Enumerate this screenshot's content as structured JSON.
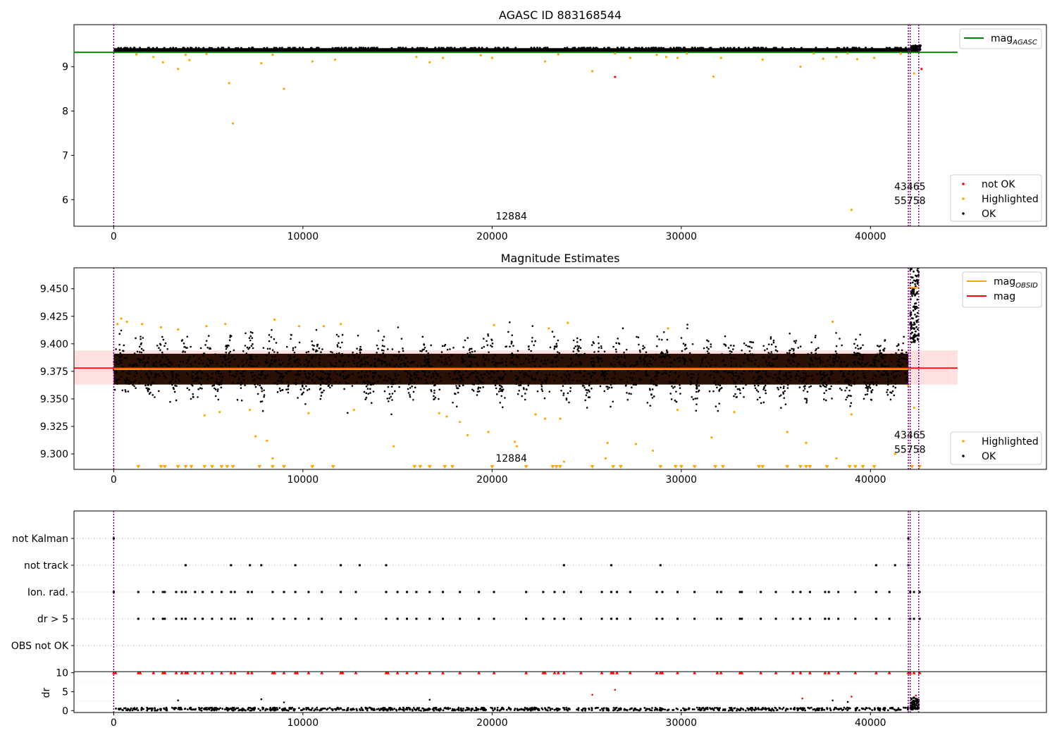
{
  "chart_data": [
    {
      "type": "scatter",
      "title": "AGASC ID 883168544",
      "xlim": [
        -2100,
        49300
      ],
      "ylim": [
        5.4,
        9.95
      ],
      "x_ticks": [
        "0",
        "10000",
        "20000",
        "30000",
        "40000"
      ],
      "y_ticks": [
        "6",
        "7",
        "8",
        "9"
      ],
      "legends": [
        {
          "location": "top-right",
          "entries": [
            {
              "label": "mag",
              "sub": "AGASC",
              "color": "#008000",
              "kind": "line"
            }
          ]
        },
        {
          "location": "bottom-right",
          "entries": [
            {
              "label": "not OK",
              "color": "#ff0000",
              "kind": "marker"
            },
            {
              "label": "Highlighted",
              "color": "#ffa500",
              "kind": "marker"
            },
            {
              "label": "OK",
              "color": "#000000",
              "kind": "marker"
            }
          ]
        }
      ],
      "annotations": [
        {
          "text": "12884",
          "x": 20000,
          "y": 5.55
        },
        {
          "text": "43465",
          "x": 42000,
          "y": 6.22
        },
        {
          "text": "55758",
          "x": 42000,
          "y": 5.9
        }
      ],
      "vlines": [
        0,
        42000,
        42100,
        42550
      ],
      "mag_agasc": 9.325,
      "mag_agasc_xrange": [
        0,
        44600
      ],
      "ok_band": {
        "x": [
          0,
          42600
        ],
        "y_low": 9.33,
        "y_high": 9.42
      },
      "highlighted_points": [
        [
          1200,
          9.28
        ],
        [
          2100,
          9.22
        ],
        [
          2600,
          9.1
        ],
        [
          3400,
          8.95
        ],
        [
          3800,
          9.27
        ],
        [
          4000,
          9.15
        ],
        [
          4900,
          9.29
        ],
        [
          6100,
          8.63
        ],
        [
          6300,
          7.72
        ],
        [
          7800,
          9.08
        ],
        [
          8400,
          9.27
        ],
        [
          9000,
          8.5
        ],
        [
          10500,
          9.12
        ],
        [
          11700,
          9.16
        ],
        [
          16000,
          9.22
        ],
        [
          16700,
          9.1
        ],
        [
          17400,
          9.2
        ],
        [
          19400,
          9.26
        ],
        [
          20000,
          9.2
        ],
        [
          22800,
          9.12
        ],
        [
          23500,
          9.28
        ],
        [
          25300,
          8.9
        ],
        [
          26500,
          9.3
        ],
        [
          27300,
          9.2
        ],
        [
          28700,
          9.27
        ],
        [
          29200,
          9.22
        ],
        [
          29800,
          9.2
        ],
        [
          30300,
          9.3
        ],
        [
          31700,
          8.78
        ],
        [
          32100,
          9.2
        ],
        [
          34300,
          9.16
        ],
        [
          36300,
          9.0
        ],
        [
          37000,
          9.3
        ],
        [
          37500,
          9.18
        ],
        [
          38200,
          9.22
        ],
        [
          38800,
          9.3
        ],
        [
          39000,
          5.77
        ],
        [
          39300,
          9.17
        ],
        [
          40200,
          9.2
        ],
        [
          41600,
          9.3
        ],
        [
          42300,
          8.85
        ]
      ],
      "not_ok_points": [
        [
          26500,
          8.77
        ],
        [
          42700,
          8.95
        ]
      ]
    },
    {
      "type": "scatter",
      "title": "Magnitude Estimates",
      "xlim": [
        -2100,
        49300
      ],
      "ylim": [
        9.286,
        9.469
      ],
      "x_ticks": [
        "0",
        "10000",
        "20000",
        "30000",
        "40000"
      ],
      "y_ticks": [
        "9.300",
        "9.325",
        "9.350",
        "9.375",
        "9.400",
        "9.425",
        "9.450"
      ],
      "legends": [
        {
          "location": "top-right",
          "entries": [
            {
              "label": "mag",
              "sub": "OBSID",
              "color": "#ffa500",
              "kind": "line"
            },
            {
              "label": "mag",
              "sub": "",
              "color": "#ff0000",
              "kind": "line"
            }
          ]
        },
        {
          "location": "bottom-right",
          "entries": [
            {
              "label": "Highlighted",
              "color": "#ffa500",
              "kind": "marker"
            },
            {
              "label": "OK",
              "color": "#000000",
              "kind": "marker"
            }
          ]
        }
      ],
      "annotations": [
        {
          "text": "12884",
          "x": 20000,
          "y": 9.293
        },
        {
          "text": "43465",
          "x": 42000,
          "y": 9.314
        },
        {
          "text": "55758",
          "x": 42000,
          "y": 9.301
        }
      ],
      "vlines": [
        0,
        42000,
        42100,
        42550
      ],
      "mag": 9.378,
      "mag_band": [
        9.363,
        9.394
      ],
      "mag_xrange": [
        0,
        44600
      ],
      "mag_obsid_segments": [
        {
          "x": [
            0,
            42000
          ],
          "y": 9.377
        },
        {
          "x": [
            42000,
            42550
          ],
          "y": 9.451
        }
      ],
      "ok_cloud": {
        "x": [
          0,
          42000
        ],
        "center": 9.377,
        "spread": 0.036,
        "wave_period": 1150
      },
      "late_cluster": {
        "x": [
          42100,
          42550
        ],
        "y_low": 9.4,
        "y_high": 9.469
      },
      "highlighted_points": [
        [
          200,
          9.418
        ],
        [
          400,
          9.423
        ],
        [
          700,
          9.42
        ],
        [
          1500,
          9.418
        ],
        [
          2500,
          9.415
        ],
        [
          3400,
          9.413
        ],
        [
          4800,
          9.335
        ],
        [
          4900,
          9.416
        ],
        [
          5600,
          9.338
        ],
        [
          5900,
          9.418
        ],
        [
          7200,
          9.34
        ],
        [
          7500,
          9.316
        ],
        [
          8100,
          9.312
        ],
        [
          8400,
          9.296
        ],
        [
          8500,
          9.422
        ],
        [
          9800,
          9.416
        ],
        [
          10300,
          9.337
        ],
        [
          11100,
          9.416
        ],
        [
          12000,
          9.418
        ],
        [
          12700,
          9.34
        ],
        [
          14800,
          9.307
        ],
        [
          17200,
          9.337
        ],
        [
          17600,
          9.334
        ],
        [
          18300,
          9.329
        ],
        [
          18700,
          9.317
        ],
        [
          19800,
          9.32
        ],
        [
          20100,
          9.417
        ],
        [
          21200,
          9.311
        ],
        [
          21300,
          9.307
        ],
        [
          22300,
          9.336
        ],
        [
          22800,
          9.332
        ],
        [
          23000,
          9.414
        ],
        [
          23600,
          9.332
        ],
        [
          23800,
          9.293
        ],
        [
          24000,
          9.419
        ],
        [
          26000,
          9.296
        ],
        [
          26100,
          9.31
        ],
        [
          27600,
          9.309
        ],
        [
          28500,
          9.303
        ],
        [
          29300,
          9.414
        ],
        [
          29800,
          9.34
        ],
        [
          31600,
          9.315
        ],
        [
          32800,
          9.338
        ],
        [
          35600,
          9.32
        ],
        [
          36600,
          9.31
        ],
        [
          38000,
          9.42
        ],
        [
          38200,
          9.296
        ],
        [
          39000,
          9.336
        ],
        [
          41300,
          9.3
        ],
        [
          42000,
          9.362
        ],
        [
          42300,
          9.342
        ]
      ],
      "lower_limit_x": [
        1300,
        2500,
        2700,
        3400,
        3800,
        4100,
        4800,
        5200,
        5700,
        6000,
        6300,
        7700,
        8400,
        9000,
        10500,
        11600,
        15900,
        16200,
        16700,
        17500,
        17900,
        20000,
        21800,
        23200,
        23400,
        23600,
        25300,
        26400,
        26800,
        28900,
        29700,
        30000,
        30700,
        31800,
        32200,
        34100,
        34300,
        35600,
        36300,
        36600,
        36800,
        37700,
        38900,
        39200,
        39600,
        40200,
        42200,
        42600
      ],
      "lower_limit_y": 9.288
    },
    {
      "type": "scatter",
      "title": "",
      "xlim": [
        -2100,
        49300
      ],
      "ylabel": "",
      "categories": [
        "not Kalman",
        "not track",
        "Ion. rad.",
        "dr > 5",
        "OBS not OK"
      ],
      "vlines": [
        0,
        42000,
        42100,
        42550
      ],
      "flags": {
        "not Kalman": [
          0,
          42000
        ],
        "not track": [
          3800,
          6200,
          7200,
          7800,
          9600,
          12000,
          13000,
          14400,
          23800,
          26300,
          28900,
          40300,
          41300,
          42000
        ],
        "Ion. rad.": [
          0,
          1300,
          2100,
          2600,
          2700,
          3300,
          3600,
          3800,
          4300,
          4700,
          5200,
          5700,
          6200,
          6400,
          7100,
          7300,
          8400,
          9000,
          9600,
          10300,
          11000,
          12000,
          12800,
          14400,
          15000,
          15500,
          16000,
          16700,
          17400,
          18300,
          19300,
          20100,
          21800,
          22700,
          23300,
          23800,
          24700,
          25800,
          26300,
          26600,
          27300,
          28700,
          29000,
          29800,
          30700,
          31900,
          32100,
          33100,
          33200,
          34200,
          35000,
          35900,
          36300,
          36800,
          37600,
          37800,
          38300,
          39200,
          40300,
          41000,
          42100,
          42300,
          42600
        ],
        "dr > 5": [
          1300,
          2100,
          2600,
          2700,
          3300,
          3600,
          3800,
          4300,
          4700,
          5200,
          5700,
          6200,
          6400,
          7100,
          7300,
          8400,
          9000,
          9600,
          10300,
          11000,
          12000,
          12800,
          14400,
          15000,
          15500,
          16000,
          16700,
          17400,
          18300,
          19300,
          20100,
          21800,
          22700,
          23300,
          23800,
          24700,
          25800,
          26300,
          26600,
          27300,
          28700,
          29000,
          29800,
          30700,
          31900,
          32100,
          33100,
          33200,
          34200,
          35000,
          35900,
          36300,
          36800,
          37600,
          37800,
          38300,
          39200,
          40300,
          41000,
          42100,
          42300,
          42600
        ],
        "OBS not OK": []
      }
    },
    {
      "type": "scatter",
      "title": "",
      "xlim": [
        -2100,
        49300
      ],
      "ylim": [
        -0.5,
        10.3
      ],
      "ylabel": "dr",
      "x_ticks": [
        "0",
        "10000",
        "20000",
        "30000",
        "40000"
      ],
      "y_ticks": [
        "0",
        "5",
        "10"
      ],
      "vlines": [
        0,
        42000,
        42100,
        42550
      ],
      "capped_value": 10,
      "capped_x": [
        0,
        100,
        1300,
        1400,
        2100,
        2600,
        2700,
        3300,
        3600,
        3800,
        3900,
        4300,
        4700,
        5200,
        5700,
        6200,
        6400,
        7100,
        7300,
        8400,
        8500,
        9000,
        9600,
        9700,
        10300,
        11000,
        12000,
        12100,
        12800,
        14400,
        14500,
        15000,
        15500,
        16000,
        16700,
        17400,
        18300,
        19300,
        20100,
        21800,
        22700,
        22800,
        23300,
        23500,
        23800,
        24700,
        25800,
        26300,
        26400,
        26600,
        27300,
        28700,
        28900,
        29000,
        29800,
        30700,
        31900,
        32100,
        33100,
        33200,
        34200,
        35000,
        35900,
        36300,
        36800,
        37600,
        37800,
        38300,
        39200,
        40300,
        41000,
        42000,
        42100,
        42300,
        42600
      ],
      "red_points": [
        [
          25300,
          4.2
        ],
        [
          26500,
          5.5
        ],
        [
          36400,
          3.2
        ],
        [
          39000,
          3.7
        ],
        [
          42400,
          4.0
        ]
      ],
      "black_points": [
        [
          3400,
          2.7
        ],
        [
          7800,
          3.0
        ],
        [
          9000,
          2.2
        ],
        [
          16700,
          2.9
        ],
        [
          38000,
          2.7
        ],
        [
          38800,
          2.3
        ]
      ],
      "baseline": {
        "x": [
          0,
          42000
        ],
        "y_low": 0.0,
        "y_high": 0.8
      },
      "late_cluster": {
        "x": [
          42100,
          42550
        ],
        "y_low": 0.3,
        "y_high": 3.5
      }
    }
  ]
}
